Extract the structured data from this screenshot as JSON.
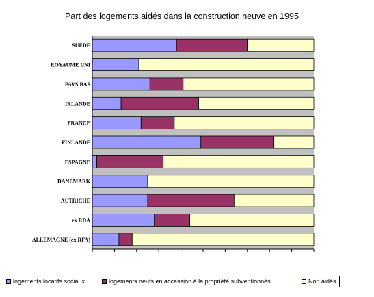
{
  "chart_data": {
    "type": "bar",
    "orientation": "horizontal",
    "stacked": true,
    "title": "Part des logements aidés dans la construction neuve en 1995",
    "xlabel": "",
    "ylabel": "",
    "xlim": [
      0,
      100
    ],
    "tick_count": 10,
    "grid": false,
    "legend_position": "bottom",
    "categories": [
      "SUEDE",
      "ROYAUME UNI",
      "PAYS BAS",
      "IRLANDE",
      "FRANCE",
      "FINLANDE",
      "ESPAGNE",
      "DANEMARK",
      "AUTRICHE",
      "ex RDA",
      "ALLEMAGNE (ex RFA)"
    ],
    "series": [
      {
        "name": "logements locatifs sociaux",
        "color": "#9999ff",
        "values": [
          38,
          21,
          26,
          13,
          22,
          49,
          2,
          25,
          25,
          28,
          12
        ]
      },
      {
        "name": "logements  neufs en accession à la propriété subventionnés",
        "color": "#993366",
        "values": [
          32,
          0,
          15,
          35,
          15,
          33,
          30,
          0,
          39,
          16,
          6
        ]
      },
      {
        "name": "Non aidés",
        "color": "#ffffcc",
        "values": [
          30,
          79,
          59,
          52,
          63,
          18,
          68,
          75,
          36,
          56,
          82
        ]
      }
    ]
  }
}
